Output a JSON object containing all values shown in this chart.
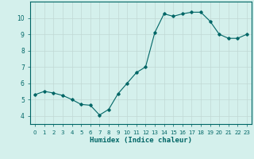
{
  "x": [
    0,
    1,
    2,
    3,
    4,
    5,
    6,
    7,
    8,
    9,
    10,
    11,
    12,
    13,
    14,
    15,
    16,
    17,
    18,
    19,
    20,
    21,
    22,
    23
  ],
  "y": [
    5.3,
    5.5,
    5.4,
    5.25,
    5.0,
    4.7,
    4.65,
    4.05,
    4.4,
    5.35,
    6.0,
    6.65,
    7.0,
    9.1,
    10.25,
    10.1,
    10.25,
    10.35,
    10.35,
    9.8,
    9.0,
    8.75,
    8.75,
    9.0
  ],
  "line_color": "#006666",
  "marker": "D",
  "markersize": 1.8,
  "linewidth": 0.8,
  "xlabel": "Humidex (Indice chaleur)",
  "xlabel_fontsize": 6.5,
  "bg_color": "#d4f0ec",
  "grid_color": "#c0d8d4",
  "axes_color": "#006666",
  "tick_color": "#006666",
  "ylim": [
    3.5,
    11.0
  ],
  "xlim": [
    -0.5,
    23.5
  ],
  "yticks": [
    4,
    5,
    6,
    7,
    8,
    9,
    10
  ],
  "xticks": [
    0,
    1,
    2,
    3,
    4,
    5,
    6,
    7,
    8,
    9,
    10,
    11,
    12,
    13,
    14,
    15,
    16,
    17,
    18,
    19,
    20,
    21,
    22,
    23
  ],
  "tick_fontsize": 5.0,
  "ytick_fontsize": 5.5
}
